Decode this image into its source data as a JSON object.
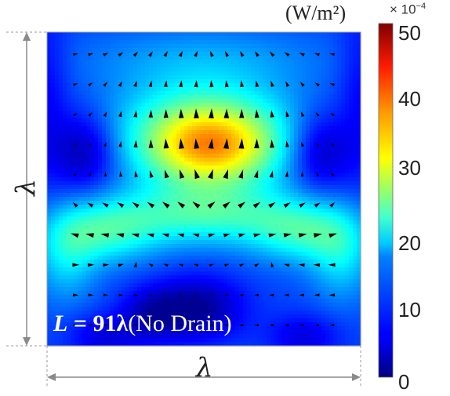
{
  "chart_data": {
    "type": "heatmap",
    "colorbar": {
      "unit": "(W/m²)",
      "multiplier_base": "× 10",
      "multiplier_exp": "−4",
      "range": [
        0,
        52
      ],
      "ticks": [
        0,
        10,
        20,
        30,
        40,
        50
      ],
      "colormap": "jet"
    },
    "xlabel": "λ",
    "ylabel": "λ",
    "annotation": {
      "var": "L",
      "eq": " = ",
      "value": "91λ",
      "suffix": "(No Drain)"
    },
    "field": {
      "description_free_peaks": [
        {
          "x": 0.52,
          "y": 0.37,
          "value": 35
        },
        {
          "x": 0.5,
          "y": 0.6,
          "value": 26
        },
        {
          "x": 0.15,
          "y": 0.62,
          "value": 22
        },
        {
          "x": 0.85,
          "y": 0.62,
          "value": 22
        },
        {
          "x": 0.5,
          "y": 0.08,
          "value": 14
        }
      ],
      "lows": [
        {
          "x": 0.13,
          "y": 0.38,
          "value": 3
        },
        {
          "x": 0.86,
          "y": 0.38,
          "value": 3
        },
        {
          "x": 0.48,
          "y": 0.9,
          "value": 2
        },
        {
          "x": 0.15,
          "y": 0.95,
          "value": 6
        },
        {
          "x": 0.85,
          "y": 0.95,
          "value": 6
        }
      ],
      "background": 10
    }
  },
  "colors": {
    "frame": "#9a9a9a",
    "arrow": "#000000"
  }
}
